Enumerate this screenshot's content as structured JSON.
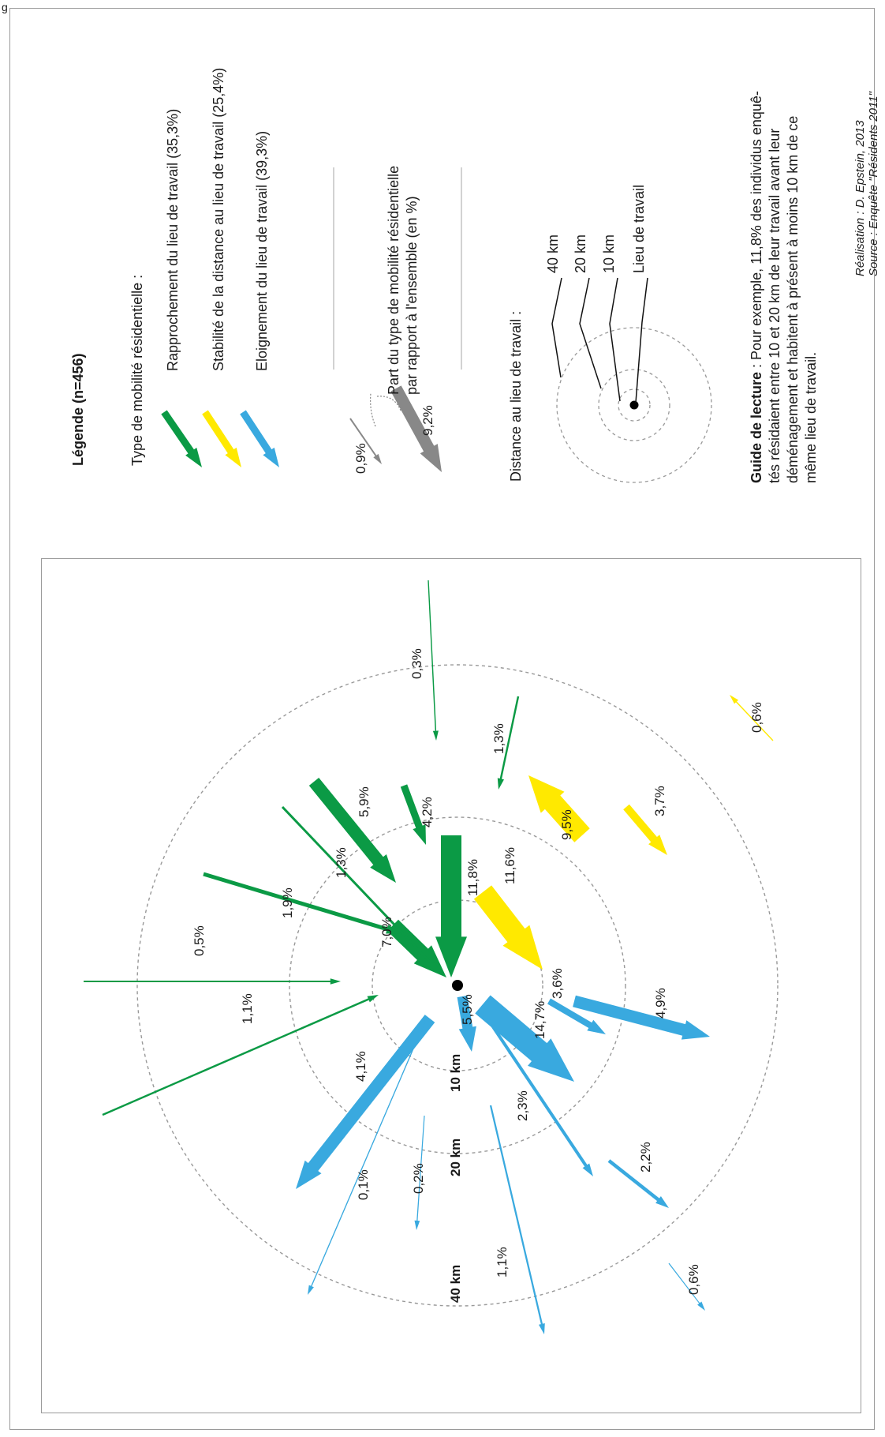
{
  "colors": {
    "rapprochement": "#0b9a45",
    "stabilite": "#ffe900",
    "eloignement": "#39a9df",
    "neutral": "#888888",
    "ring": "#999999",
    "frame": "#9a9a9a"
  },
  "figure": {
    "corner_mark": "g",
    "rings": [
      {
        "label": "10 km"
      },
      {
        "label": "20 km"
      },
      {
        "label": "40 km"
      }
    ]
  },
  "flows": [
    {
      "type": "rapprochement",
      "label": "11,8%"
    },
    {
      "type": "rapprochement",
      "label": "7,0%"
    },
    {
      "type": "rapprochement",
      "label": "5,9%"
    },
    {
      "type": "rapprochement",
      "label": "4,2%"
    },
    {
      "type": "rapprochement",
      "label": "1,3%"
    },
    {
      "type": "rapprochement",
      "label": "1,9%"
    },
    {
      "type": "rapprochement",
      "label": "0,5%"
    },
    {
      "type": "rapprochement",
      "label": "1,1%"
    },
    {
      "type": "rapprochement",
      "label": "0,3%"
    },
    {
      "type": "rapprochement",
      "label": "1,3%"
    },
    {
      "type": "stabilite",
      "label": "11,6%"
    },
    {
      "type": "stabilite",
      "label": "9,5%"
    },
    {
      "type": "stabilite",
      "label": "3,7%"
    },
    {
      "type": "stabilite",
      "label": "0,6%"
    },
    {
      "type": "eloignement",
      "label": "14,7%"
    },
    {
      "type": "eloignement",
      "label": "5,5%"
    },
    {
      "type": "eloignement",
      "label": "3,6%"
    },
    {
      "type": "eloignement",
      "label": "4,9%"
    },
    {
      "type": "eloignement",
      "label": "4,1%"
    },
    {
      "type": "eloignement",
      "label": "2,3%"
    },
    {
      "type": "eloignement",
      "label": "2,2%"
    },
    {
      "type": "eloignement",
      "label": "0,1%"
    },
    {
      "type": "eloignement",
      "label": "0,2%"
    },
    {
      "type": "eloignement",
      "label": "1,1%"
    },
    {
      "type": "eloignement",
      "label": "0,6%"
    }
  ],
  "legend": {
    "title": "Légende (n=456)",
    "type_heading": "Type de mobilité résidentielle :",
    "types": [
      {
        "key": "rapprochement",
        "label": "Rapprochement du lieu de travail (35,3%)"
      },
      {
        "key": "stabilite",
        "label": "Stabilité de la distance au lieu de travail (25,4%)"
      },
      {
        "key": "eloignement",
        "label": "Eloignement du lieu de travail (39,3%)"
      }
    ],
    "share_line1": "Part du type de mobilité résidentielle",
    "share_line2": "par rapport à l'ensemble (en %)",
    "share_small": "0,9%",
    "share_big": "9,2%",
    "distance_heading": "Distance au lieu de travail :",
    "distance_items": [
      "40 km",
      "20 km",
      "10 km",
      "Lieu de travail"
    ],
    "guide_bold": "Guide de lecture",
    "guide_lines": [
      " : Pour exemple, 11,8% des individus enquê-",
      "tés résidaient entre 10 et 20 km de leur travail avant leur",
      "déménagement et habitent à présent à moins 10 km de ce",
      "même lieu de travail."
    ],
    "credit1": "Réalisation : D. Epstein, 2013",
    "credit2": "Source : Enquête \"Résidents 2011\""
  }
}
